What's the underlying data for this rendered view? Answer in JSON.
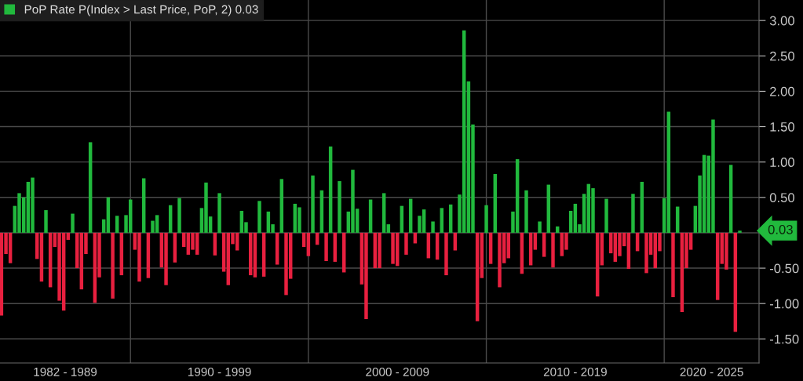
{
  "chart_data": {
    "type": "bar",
    "x": [
      "1982-10",
      "1983-01",
      "1983-04",
      "1983-07",
      "1983-10",
      "1984-01",
      "1984-04",
      "1984-07",
      "1984-10",
      "1985-01",
      "1985-04",
      "1985-07",
      "1985-10",
      "1986-01",
      "1986-04",
      "1986-07",
      "1986-10",
      "1987-01",
      "1987-04",
      "1987-07",
      "1987-10",
      "1988-01",
      "1988-04",
      "1988-07",
      "1988-10",
      "1989-01",
      "1989-04",
      "1989-07",
      "1989-10",
      "1990-01",
      "1990-04",
      "1990-07",
      "1990-10",
      "1991-01",
      "1991-04",
      "1991-07",
      "1991-10",
      "1992-01",
      "1992-04",
      "1992-07",
      "1992-10",
      "1993-01",
      "1993-04",
      "1993-07",
      "1993-10",
      "1994-01",
      "1994-04",
      "1994-07",
      "1994-10",
      "1995-01",
      "1995-04",
      "1995-07",
      "1995-10",
      "1996-01",
      "1996-04",
      "1996-07",
      "1996-10",
      "1997-01",
      "1997-04",
      "1997-07",
      "1997-10",
      "1998-01",
      "1998-04",
      "1998-07",
      "1998-10",
      "1999-01",
      "1999-04",
      "1999-07",
      "1999-10",
      "2000-01",
      "2000-04",
      "2000-07",
      "2000-10",
      "2001-01",
      "2001-04",
      "2001-07",
      "2001-10",
      "2002-01",
      "2002-04",
      "2002-07",
      "2002-10",
      "2003-01",
      "2003-04",
      "2003-07",
      "2003-10",
      "2004-01",
      "2004-04",
      "2004-07",
      "2004-10",
      "2005-01",
      "2005-04",
      "2005-07",
      "2005-10",
      "2006-01",
      "2006-04",
      "2006-07",
      "2006-10",
      "2007-01",
      "2007-04",
      "2007-07",
      "2007-10",
      "2008-01",
      "2008-04",
      "2008-07",
      "2008-10",
      "2009-01",
      "2009-04",
      "2009-07",
      "2009-10",
      "2010-01",
      "2010-04",
      "2010-07",
      "2010-10",
      "2011-01",
      "2011-04",
      "2011-07",
      "2011-10",
      "2012-01",
      "2012-04",
      "2012-07",
      "2012-10",
      "2013-01",
      "2013-04",
      "2013-07",
      "2013-10",
      "2014-01",
      "2014-04",
      "2014-07",
      "2014-10",
      "2015-01",
      "2015-04",
      "2015-07",
      "2015-10",
      "2016-01",
      "2016-04",
      "2016-07",
      "2016-10",
      "2017-01",
      "2017-04",
      "2017-07",
      "2017-10",
      "2018-01",
      "2018-04",
      "2018-07",
      "2018-10",
      "2019-01",
      "2019-04",
      "2019-07",
      "2019-10",
      "2020-01",
      "2020-04",
      "2020-07",
      "2020-10",
      "2021-01",
      "2021-04",
      "2021-07",
      "2021-10",
      "2022-01",
      "2022-04",
      "2022-07",
      "2022-10",
      "2023-01",
      "2023-04",
      "2023-07",
      "2023-10",
      "2024-01",
      "2024-04"
    ],
    "series": [
      {
        "name": "PoP Rate P(Index > Last Price, PoP, 2) 0.03",
        "color": "#21b93d",
        "values": [
          null,
          null,
          null,
          0.38,
          0.56,
          0.5,
          0.72,
          0.78,
          null,
          null,
          0.32,
          null,
          null,
          null,
          null,
          null,
          0.27,
          null,
          null,
          null,
          1.28,
          null,
          null,
          0.19,
          0.5,
          null,
          0.24,
          null,
          0.25,
          0.47,
          null,
          null,
          0.77,
          null,
          0.17,
          0.25,
          null,
          null,
          0.39,
          null,
          0.49,
          null,
          null,
          null,
          null,
          0.35,
          0.71,
          0.23,
          null,
          0.56,
          null,
          null,
          null,
          null,
          0.31,
          0.15,
          null,
          null,
          0.45,
          null,
          0.3,
          0.12,
          null,
          0.76,
          null,
          null,
          0.41,
          0.36,
          null,
          null,
          0.81,
          null,
          0.6,
          null,
          1.22,
          null,
          0.73,
          null,
          0.3,
          0.89,
          0.34,
          null,
          null,
          0.47,
          null,
          null,
          0.56,
          0.12,
          null,
          null,
          0.38,
          null,
          0.48,
          null,
          0.24,
          0.33,
          null,
          0.16,
          null,
          0.35,
          null,
          0.4,
          null,
          0.54,
          2.86,
          2.14,
          1.53,
          null,
          null,
          0.39,
          null,
          0.83,
          null,
          null,
          null,
          0.3,
          1.04,
          null,
          0.6,
          null,
          null,
          0.16,
          null,
          0.68,
          null,
          0.09,
          null,
          null,
          0.31,
          0.41,
          0.12,
          0.55,
          0.69,
          0.63,
          null,
          null,
          0.48,
          null,
          null,
          null,
          null,
          null,
          0.55,
          null,
          0.72,
          null,
          null,
          null,
          null,
          0.49,
          1.71,
          null,
          0.37,
          null,
          null,
          null,
          0.38,
          0.81,
          1.1,
          1.09,
          1.6,
          null,
          null,
          null,
          0.96,
          null,
          0.03
        ]
      },
      {
        "color": "#e8203f",
        "values": [
          -1.17,
          -0.3,
          -0.43,
          null,
          null,
          null,
          null,
          null,
          -0.37,
          -0.69,
          null,
          -0.77,
          -0.2,
          -0.96,
          -1.1,
          -0.1,
          null,
          -0.5,
          -0.8,
          -0.3,
          null,
          -0.99,
          -0.63,
          null,
          null,
          -0.93,
          null,
          -0.6,
          null,
          null,
          -0.24,
          -0.69,
          null,
          -0.64,
          null,
          null,
          -0.49,
          -0.74,
          null,
          -0.42,
          null,
          -0.2,
          -0.31,
          -0.24,
          -0.31,
          null,
          null,
          null,
          -0.32,
          null,
          -0.55,
          -0.74,
          -0.16,
          -0.25,
          null,
          null,
          -0.6,
          -0.63,
          null,
          -0.62,
          null,
          null,
          -0.45,
          null,
          -0.88,
          -0.65,
          null,
          null,
          -0.2,
          -0.33,
          null,
          -0.17,
          null,
          -0.4,
          null,
          -0.41,
          null,
          -0.56,
          null,
          null,
          null,
          -0.73,
          -1.22,
          null,
          -0.5,
          -0.5,
          null,
          null,
          -0.44,
          -0.47,
          null,
          -0.31,
          null,
          -0.15,
          null,
          null,
          -0.36,
          null,
          -0.38,
          null,
          -0.6,
          null,
          -0.25,
          null,
          null,
          null,
          null,
          -1.25,
          -0.64,
          null,
          -0.44,
          null,
          -0.77,
          -0.43,
          -0.36,
          null,
          null,
          -0.58,
          null,
          -0.46,
          -0.24,
          null,
          -0.34,
          null,
          -0.49,
          null,
          -0.33,
          -0.24,
          null,
          null,
          null,
          null,
          null,
          null,
          -0.9,
          -0.46,
          null,
          -0.29,
          -0.41,
          -0.33,
          -0.19,
          -0.51,
          null,
          -0.26,
          null,
          -0.57,
          -0.31,
          -0.5,
          -0.26,
          null,
          null,
          -0.91,
          null,
          -1.12,
          -0.5,
          -0.24,
          null,
          null,
          null,
          null,
          null,
          -0.95,
          -0.44,
          -0.52,
          null,
          -1.4,
          null
        ]
      }
    ],
    "xlim": [
      "1982-09",
      "2025-05"
    ],
    "xticks": [
      {
        "value": "1986-05",
        "label": "1982 - 1989"
      },
      {
        "value": "1990-01",
        "label": null
      },
      {
        "value": "1995-01",
        "label": "1990 - 1999"
      },
      {
        "value": "2000-01",
        "label": null
      },
      {
        "value": "2005-01",
        "label": "2000 - 2009"
      },
      {
        "value": "2010-01",
        "label": null
      },
      {
        "value": "2015-01",
        "label": "2010 - 2019"
      },
      {
        "value": "2020-01",
        "label": null
      },
      {
        "value": "2022-09",
        "label": "2020 - 2025"
      }
    ],
    "ylim": [
      -1.84,
      3.29
    ],
    "yticks": [
      {
        "value": 3,
        "label": "3.00"
      },
      {
        "value": 2.5,
        "label": "2.50"
      },
      {
        "value": 2,
        "label": "2.00"
      },
      {
        "value": 1.5,
        "label": "1.50"
      },
      {
        "value": 1,
        "label": "1.00"
      },
      {
        "value": 0.5,
        "label": "0.50"
      },
      {
        "value": -0.5,
        "label": "-0.50"
      },
      {
        "value": -1,
        "label": "-1.00"
      },
      {
        "value": -1.5,
        "label": "-1.50"
      }
    ],
    "grid": true,
    "legend": "top left",
    "annotations": [
      "0.03"
    ]
  }
}
